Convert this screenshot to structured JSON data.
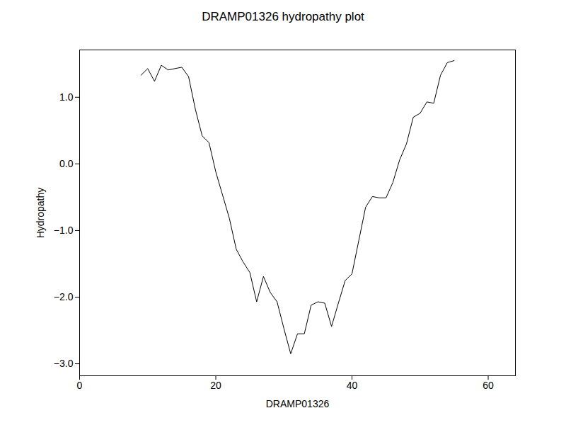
{
  "chart_data": {
    "type": "line",
    "title": "DRAMP01326 hydropathy plot",
    "x_label": "DRAMP01326",
    "y_label": "Hydropathy",
    "color": "#000000",
    "x": [
      9,
      10,
      11,
      12,
      13,
      14,
      15,
      16,
      17,
      18,
      19,
      20,
      21,
      22,
      23,
      24,
      25,
      26,
      27,
      28,
      29,
      30,
      31,
      32,
      33,
      34,
      35,
      36,
      37,
      38,
      39,
      40,
      41,
      42,
      43,
      44,
      45,
      46,
      47,
      48,
      49,
      50,
      51,
      52,
      53,
      54,
      55
    ],
    "values": [
      1.33,
      1.43,
      1.24,
      1.48,
      1.41,
      1.43,
      1.45,
      1.31,
      0.82,
      0.42,
      0.32,
      -0.12,
      -0.47,
      -0.82,
      -1.28,
      -1.47,
      -1.63,
      -2.07,
      -1.69,
      -1.93,
      -2.07,
      -2.47,
      -2.85,
      -2.55,
      -2.55,
      -2.12,
      -2.07,
      -2.09,
      -2.44,
      -2.09,
      -1.75,
      -1.65,
      -1.15,
      -0.65,
      -0.49,
      -0.51,
      -0.51,
      -0.28,
      0.06,
      0.3,
      0.7,
      0.76,
      0.93,
      0.91,
      1.33,
      1.52,
      1.55
    ],
    "xlim": [
      0,
      64
    ],
    "xticks": [
      0,
      20,
      40,
      60
    ],
    "ylim": [
      -3.18,
      1.71
    ],
    "yticks": [
      -3,
      -2,
      -1,
      0,
      1
    ],
    "grid": false
  }
}
